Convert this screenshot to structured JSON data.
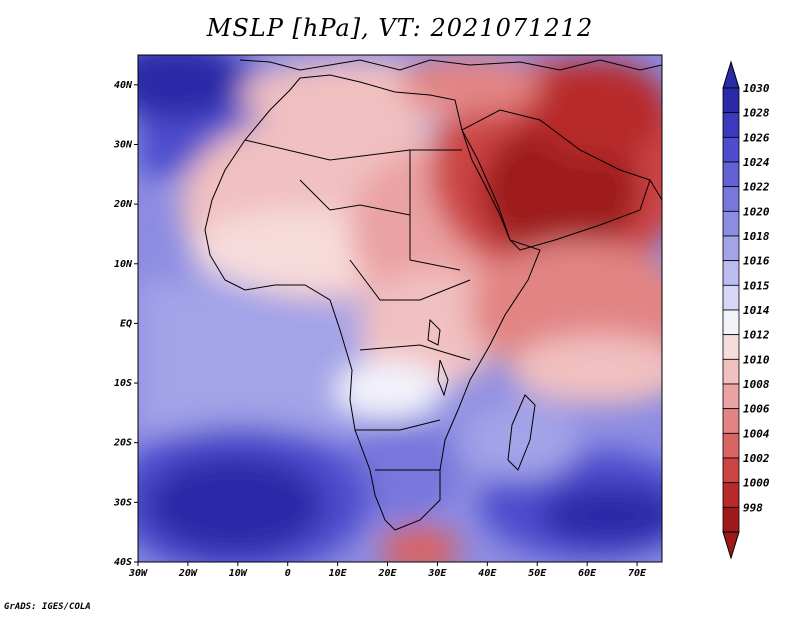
{
  "title": "MSLP [hPa], VT: 2021071212",
  "credit": "GrADS: IGES/COLA",
  "map": {
    "projection": "lat-lon",
    "lon_range": [
      -30,
      75
    ],
    "lat_range": [
      -40,
      45
    ],
    "lat_labels": [
      "40N",
      "30N",
      "20N",
      "10N",
      "EQ",
      "10S",
      "20S",
      "30S",
      "40S"
    ],
    "lon_labels": [
      "30W",
      "20W",
      "10W",
      "0",
      "10E",
      "20E",
      "30E",
      "40E",
      "50E",
      "60E",
      "70E"
    ],
    "field": "mean sea level pressure"
  },
  "colorbar": {
    "levels": [
      "1030",
      "1028",
      "1026",
      "1024",
      "1022",
      "1020",
      "1018",
      "1016",
      "1015",
      "1014",
      "1012",
      "1010",
      "1008",
      "1006",
      "1004",
      "1002",
      "1000",
      "998"
    ],
    "colors": [
      "#2a2aa8",
      "#3b3bc0",
      "#4d4dce",
      "#6262d6",
      "#7777dc",
      "#8c8ce2",
      "#a3a3e8",
      "#bcbcf0",
      "#d6d6f6",
      "#f2f2fb",
      "#f7dcdc",
      "#f1c0c0",
      "#eaa2a2",
      "#e28484",
      "#d86464",
      "#cc4444",
      "#b82a2a",
      "#9e1a1a"
    ]
  }
}
